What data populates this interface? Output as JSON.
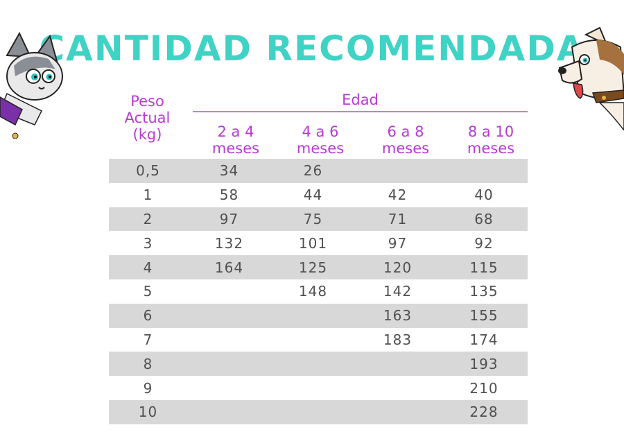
{
  "title": "CANTIDAD RECOMENDADA",
  "header": {
    "weight_lines": [
      "Peso",
      "Actual",
      "(kg)"
    ],
    "age_group": "Edad",
    "ages": [
      {
        "top": "2 a 4",
        "bottom": "meses"
      },
      {
        "top": "4 a 6",
        "bottom": "meses"
      },
      {
        "top": "6 a 8",
        "bottom": "meses"
      },
      {
        "top": "8 a 10",
        "bottom": "meses"
      }
    ]
  },
  "rows": [
    [
      "0,5",
      "34",
      "26",
      "",
      ""
    ],
    [
      "1",
      "58",
      "44",
      "42",
      "40"
    ],
    [
      "2",
      "97",
      "75",
      "71",
      "68"
    ],
    [
      "3",
      "132",
      "101",
      "97",
      "92"
    ],
    [
      "4",
      "164",
      "125",
      "120",
      "115"
    ],
    [
      "5",
      "",
      "148",
      "142",
      "135"
    ],
    [
      "6",
      "",
      "",
      "163",
      "155"
    ],
    [
      "7",
      "",
      "",
      "183",
      "174"
    ],
    [
      "8",
      "",
      "",
      "",
      "193"
    ],
    [
      "9",
      "",
      "",
      "",
      "210"
    ],
    [
      "10",
      "",
      "",
      "",
      "228"
    ]
  ],
  "colors": {
    "title": "#3fd3c6",
    "header": "#b83ad6",
    "row_shade": "#d8d8d8",
    "text": "#505050"
  },
  "illustrations": [
    "cat-icon",
    "dog-icon"
  ]
}
